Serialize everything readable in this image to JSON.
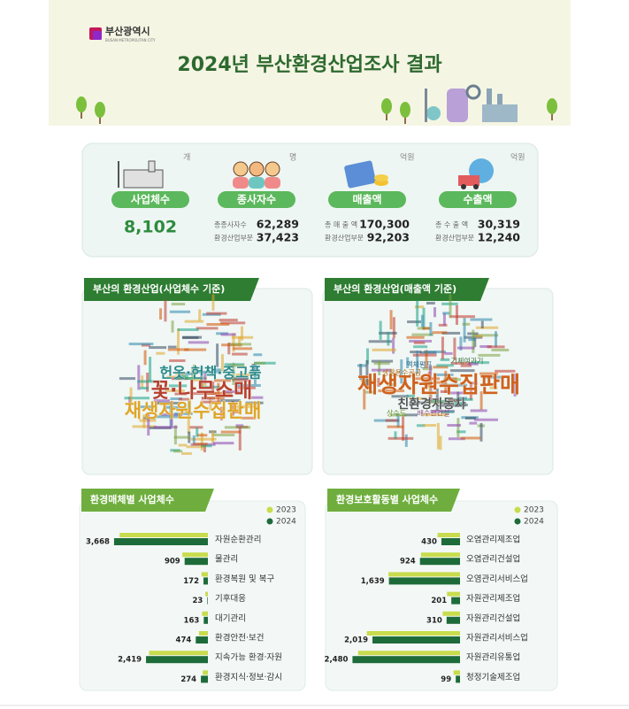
{
  "header": {
    "logo": "부산광역시",
    "logo_sub": "BUSAN METROPOLITAN CITY",
    "title": "2024년 부산환경산업조사 결과"
  },
  "summary": {
    "items": [
      {
        "label": "사업체수",
        "unit": "개",
        "value": "8,102"
      },
      {
        "label": "종사자수",
        "unit": "명",
        "rows": [
          [
            "총종사자수",
            "62,289"
          ],
          [
            "환경산업부문",
            "37,423"
          ]
        ]
      },
      {
        "label": "매출액",
        "unit": "억원",
        "rows": [
          [
            "총 매 출 액",
            "170,300"
          ],
          [
            "환경산업부문",
            "92,203"
          ]
        ]
      },
      {
        "label": "수출액",
        "unit": "억원",
        "rows": [
          [
            "총 수 출 액",
            "30,319"
          ],
          [
            "환경산업부문",
            "12,240"
          ]
        ]
      }
    ]
  },
  "wordclouds": [
    {
      "title": "부산의 환경산업(사업체수 기준)",
      "words": [
        {
          "text": "헌옷·헌책·중고품",
          "color": "#2a8a8a"
        },
        {
          "text": "꽃·나무소매",
          "color": "#b8402e"
        },
        {
          "text": "재생자원수집판매",
          "color": "#e0a526"
        }
      ]
    },
    {
      "title": "부산의 환경산업(매출액 기준)",
      "words": [
        {
          "text": "재생자원수집판매",
          "color": "#d0621e"
        },
        {
          "text": "친환경자동차",
          "color": "#555555"
        },
        {
          "text": "기체여과기",
          "color": "#3a6f3a"
        },
        {
          "text": "액체펌프",
          "color": "#2f6f8f"
        },
        {
          "text": "생활용수공급",
          "color": "#b36b1a"
        },
        {
          "text": "상수도",
          "color": "#6a8f2a"
        },
        {
          "text": "배수관건설",
          "color": "#8a4a7a"
        }
      ]
    }
  ],
  "chart_data": [
    {
      "type": "bar",
      "orientation": "horizontal",
      "x_reversed": true,
      "title": "환경매체별 사업체수",
      "categories": [
        "자원순환관리",
        "물관리",
        "환경복원 및 복구",
        "기후대응",
        "대기관리",
        "환경안전·보건",
        "지속가능 환경·자원",
        "환경지식·정보·감시"
      ],
      "series": [
        {
          "name": "2023",
          "color": "#c8dc4e",
          "values": [
            3450,
            1000,
            250,
            100,
            230,
            350,
            2300,
            200
          ]
        },
        {
          "name": "2024",
          "color": "#1e6b3a",
          "values": [
            3668,
            909,
            172,
            23,
            163,
            474,
            2419,
            274
          ],
          "value_labels": [
            "3,668",
            "909",
            "172",
            "23",
            "163",
            "474",
            "2,419",
            "274"
          ]
        }
      ],
      "xlim": [
        0,
        3700
      ],
      "legend": "top-right"
    },
    {
      "type": "bar",
      "orientation": "horizontal",
      "x_reversed": true,
      "title": "환경보호활동별 사업체수",
      "categories": [
        "오염관리제조업",
        "오염관리건설업",
        "오염관리서비스업",
        "자원관리제조업",
        "자원관리건설업",
        "자원관리서비스업",
        "자원관리유통업",
        "청정기술제조업"
      ],
      "series": [
        {
          "name": "2023",
          "color": "#c8dc4e",
          "values": [
            520,
            900,
            1650,
            300,
            400,
            2150,
            2350,
            150
          ]
        },
        {
          "name": "2024",
          "color": "#1e6b3a",
          "values": [
            430,
            924,
            1639,
            201,
            310,
            2019,
            2480,
            99
          ],
          "value_labels": [
            "430",
            "924",
            "1,639",
            "201",
            "310",
            "2,019",
            "2,480",
            "99"
          ]
        }
      ],
      "xlim": [
        0,
        2550
      ],
      "legend": "top-right"
    }
  ]
}
